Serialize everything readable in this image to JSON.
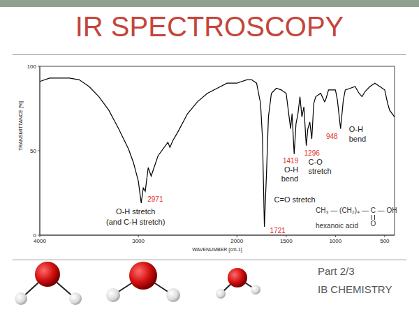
{
  "slide": {
    "title": "IR SPECTROSCOPY",
    "footer": [
      "Part 2/3",
      "IB CHEMISTRY"
    ]
  },
  "chart_data": {
    "type": "line",
    "x_label": "WAVENUMBER [cm-1]",
    "y_label": "TRANSMITTANCE [%]",
    "color": "#000000",
    "grid": false,
    "xlim": [
      4000,
      400
    ],
    "xticks": [
      4000,
      3000,
      2000,
      1500,
      1000,
      500
    ],
    "ylim": [
      0,
      100
    ],
    "yticks": [
      0,
      50,
      100
    ],
    "x": [
      4000,
      3900,
      3800,
      3700,
      3600,
      3500,
      3400,
      3300,
      3200,
      3100,
      3050,
      3000,
      2971,
      2950,
      2930,
      2900,
      2870,
      2800,
      2700,
      2680,
      2650,
      2600,
      2500,
      2400,
      2300,
      2200,
      2100,
      2000,
      1900,
      1850,
      1800,
      1760,
      1740,
      1721,
      1700,
      1680,
      1650,
      1600,
      1550,
      1500,
      1470,
      1455,
      1440,
      1419,
      1400,
      1380,
      1360,
      1340,
      1320,
      1296,
      1280,
      1260,
      1240,
      1220,
      1200,
      1150,
      1110,
      1100,
      1070,
      1000,
      980,
      948,
      920,
      900,
      850,
      800,
      760,
      730,
      700,
      650,
      600,
      550,
      500,
      470,
      450,
      400
    ],
    "values": [
      91,
      93,
      93,
      93,
      92,
      88,
      82,
      74,
      63,
      51,
      43,
      32,
      19,
      28,
      26,
      40,
      35,
      47,
      55,
      52,
      56,
      61,
      72,
      79,
      84,
      87,
      90,
      90,
      92,
      92,
      90,
      78,
      57,
      5,
      36,
      70,
      84,
      87,
      86,
      84,
      70,
      63,
      72,
      48,
      66,
      72,
      82,
      70,
      76,
      53,
      63,
      67,
      57,
      78,
      82,
      84,
      79,
      80,
      86,
      86,
      80,
      63,
      80,
      86,
      87,
      88,
      84,
      82,
      85,
      88,
      90,
      88,
      86,
      78,
      74,
      70
    ],
    "annotations": [
      {
        "x": 2971,
        "text": [
          "O-H stretch",
          "(and C-H stretch)"
        ]
      },
      {
        "x": 1721,
        "text": [
          "C=O stretch"
        ]
      },
      {
        "x": 1419,
        "text": [
          "O-H",
          "bend"
        ]
      },
      {
        "x": 1296,
        "text": [
          "C-O",
          "stretch"
        ]
      },
      {
        "x": 948,
        "text": [
          "O-H",
          "bend"
        ]
      }
    ],
    "structure": {
      "formula": [
        "CH₃ — (CH₂)₄ — ",
        "C",
        " — OH"
      ],
      "double_bond": "O",
      "name": "hexanoic acid"
    }
  }
}
